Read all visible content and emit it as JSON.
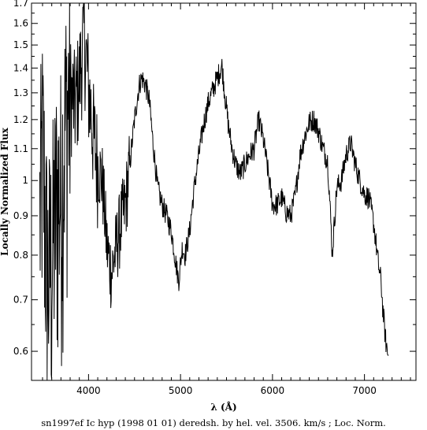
{
  "chart_data": {
    "type": "line",
    "title": "",
    "xlabel": "λ (Å)",
    "ylabel": "Locally Normalized Flux",
    "caption": "sn1997ef Ic hyp (1998 01 01) deredsh. by hel. vel.  3506. km/s ;  Loc. Norm.",
    "xlim": [
      3380,
      7560
    ],
    "ylim": [
      0.55,
      1.7
    ],
    "yscale": "log",
    "x_ticks": [
      4000,
      5000,
      6000,
      7000
    ],
    "y_ticks": [
      0.6,
      0.7,
      0.8,
      0.9,
      1,
      1.1,
      1.2,
      1.3,
      1.4,
      1.5,
      1.6,
      1.7
    ],
    "grid": false,
    "line_color": "#000000",
    "series": [
      {
        "x": [
          3470,
          3500,
          3550,
          3600,
          3650,
          3700,
          3750,
          3800,
          3850,
          3900,
          3950,
          3980,
          4000,
          4050,
          4100,
          4150,
          4200,
          4250,
          4300,
          4350,
          4400,
          4450,
          4500,
          4550,
          4580,
          4620,
          4660,
          4700,
          4750,
          4800,
          4850,
          4900,
          4950,
          4980,
          5020,
          5050,
          5100,
          5150,
          5200,
          5250,
          5300,
          5350,
          5400,
          5450,
          5480,
          5520,
          5560,
          5600,
          5650,
          5700,
          5750,
          5800,
          5850,
          5900,
          5950,
          6000,
          6050,
          6100,
          6150,
          6200,
          6250,
          6300,
          6350,
          6400,
          6450,
          6500,
          6550,
          6600,
          6650,
          6700,
          6750,
          6800,
          6850,
          6900,
          6950,
          7000,
          7050,
          7100,
          7150,
          7180,
          7200,
          7230,
          7260
        ],
        "values": [
          0.9,
          1.1,
          0.75,
          0.8,
          0.95,
          0.98,
          1.2,
          1.32,
          1.25,
          1.35,
          1.55,
          1.42,
          1.32,
          1.15,
          1.05,
          1.0,
          0.82,
          0.76,
          0.82,
          0.88,
          0.93,
          1.05,
          1.2,
          1.33,
          1.36,
          1.33,
          1.27,
          1.12,
          0.98,
          0.93,
          0.9,
          0.86,
          0.78,
          0.74,
          0.82,
          0.8,
          0.86,
          0.98,
          1.08,
          1.18,
          1.26,
          1.31,
          1.36,
          1.41,
          1.3,
          1.18,
          1.1,
          1.05,
          1.02,
          1.05,
          1.08,
          1.1,
          1.2,
          1.13,
          1.03,
          0.93,
          0.93,
          0.95,
          0.91,
          0.9,
          0.96,
          1.08,
          1.14,
          1.19,
          1.2,
          1.16,
          1.1,
          1.06,
          0.8,
          0.98,
          1.0,
          1.08,
          1.12,
          1.05,
          1.0,
          0.96,
          0.95,
          0.88,
          0.78,
          0.74,
          0.68,
          0.62,
          0.59
        ]
      }
    ]
  }
}
